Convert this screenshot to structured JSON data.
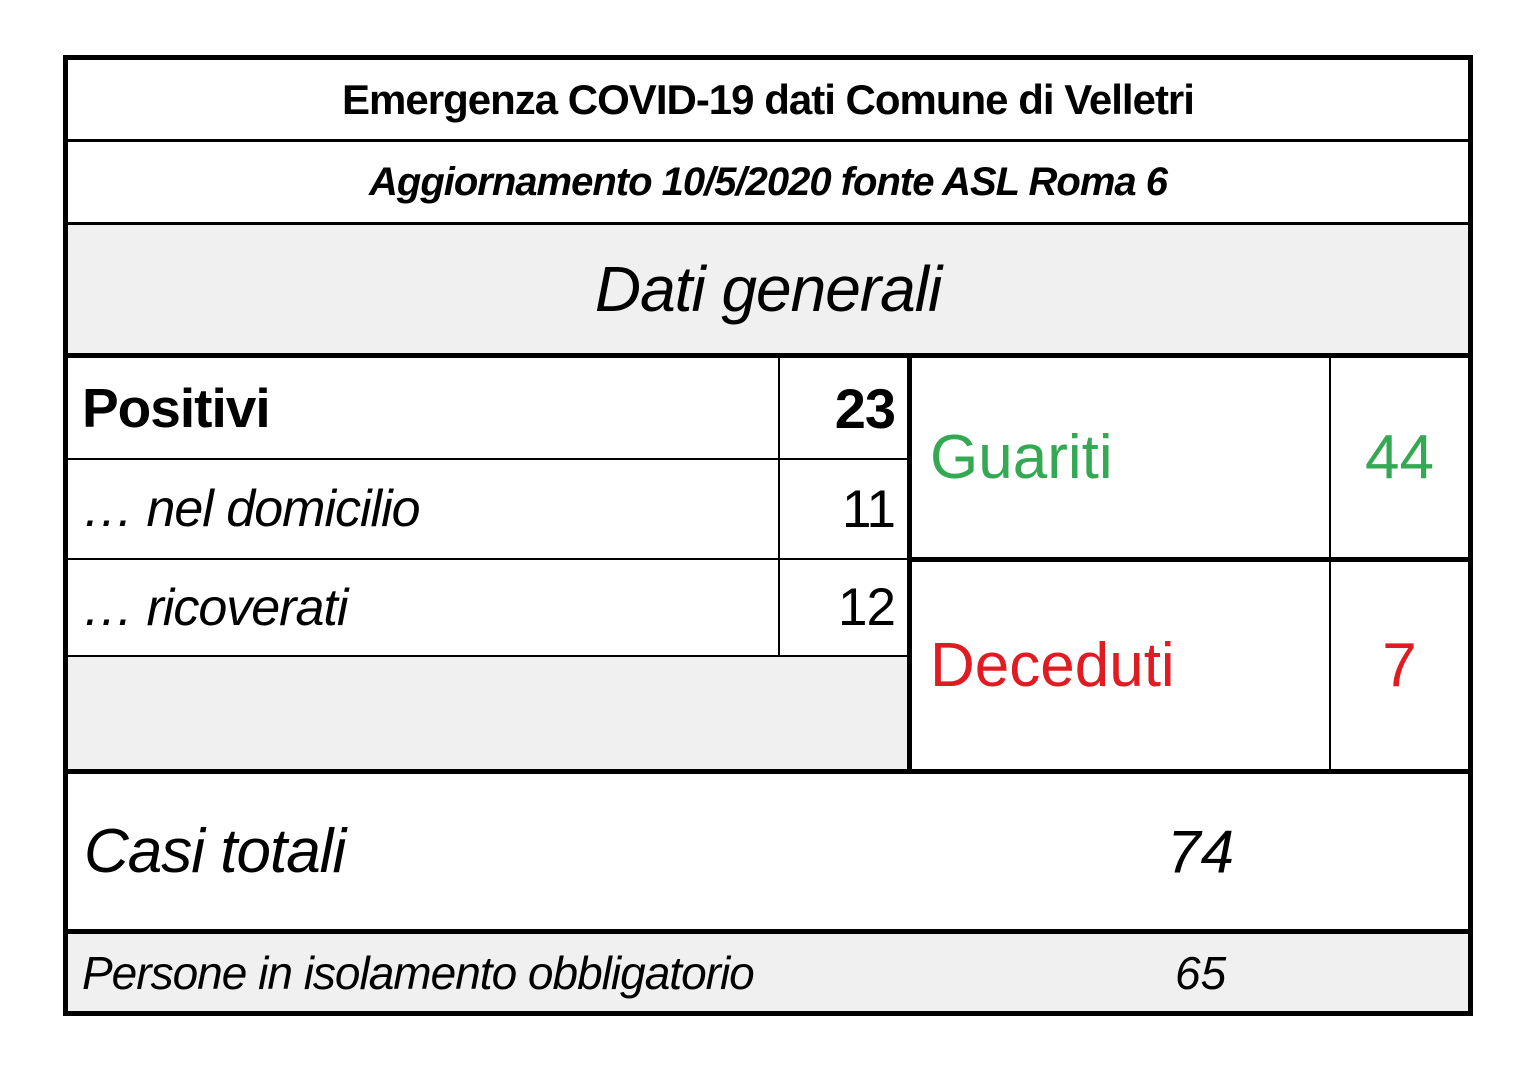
{
  "header": {
    "title": "Emergenza COVID-19 dati Comune di Velletri",
    "subtitle": "Aggiornamento 10/5/2020 fonte ASL Roma 6",
    "section": "Dati generali"
  },
  "stats": {
    "positivi": {
      "label": "Positivi",
      "value": "23"
    },
    "domicilio": {
      "label": "… nel domicilio",
      "value": "11"
    },
    "ricoverati": {
      "label": "… ricoverati",
      "value": "12"
    },
    "guariti": {
      "label": "Guariti",
      "value": "44"
    },
    "deceduti": {
      "label": "Deceduti",
      "value": "7"
    },
    "casi_totali": {
      "label": "Casi totali",
      "value": "74"
    },
    "isolamento": {
      "label": "Persone in isolamento obbligatorio",
      "value": "65"
    }
  },
  "colors": {
    "guariti_green": "#35a853",
    "deceduti_red": "#e01b22",
    "section_gray": "#f0f0f0",
    "border_black": "#000000"
  },
  "chart_data": {
    "type": "table",
    "title": "Emergenza COVID-19 dati Comune di Velletri",
    "subtitle": "Aggiornamento 10/5/2020 fonte ASL Roma 6",
    "section": "Dati generali",
    "rows": [
      {
        "label": "Positivi",
        "value": 23
      },
      {
        "label": "… nel domicilio",
        "value": 11
      },
      {
        "label": "… ricoverati",
        "value": 12
      },
      {
        "label": "Guariti",
        "value": 44
      },
      {
        "label": "Deceduti",
        "value": 7
      },
      {
        "label": "Casi totali",
        "value": 74
      },
      {
        "label": "Persone in isolamento obbligatorio",
        "value": 65
      }
    ]
  }
}
